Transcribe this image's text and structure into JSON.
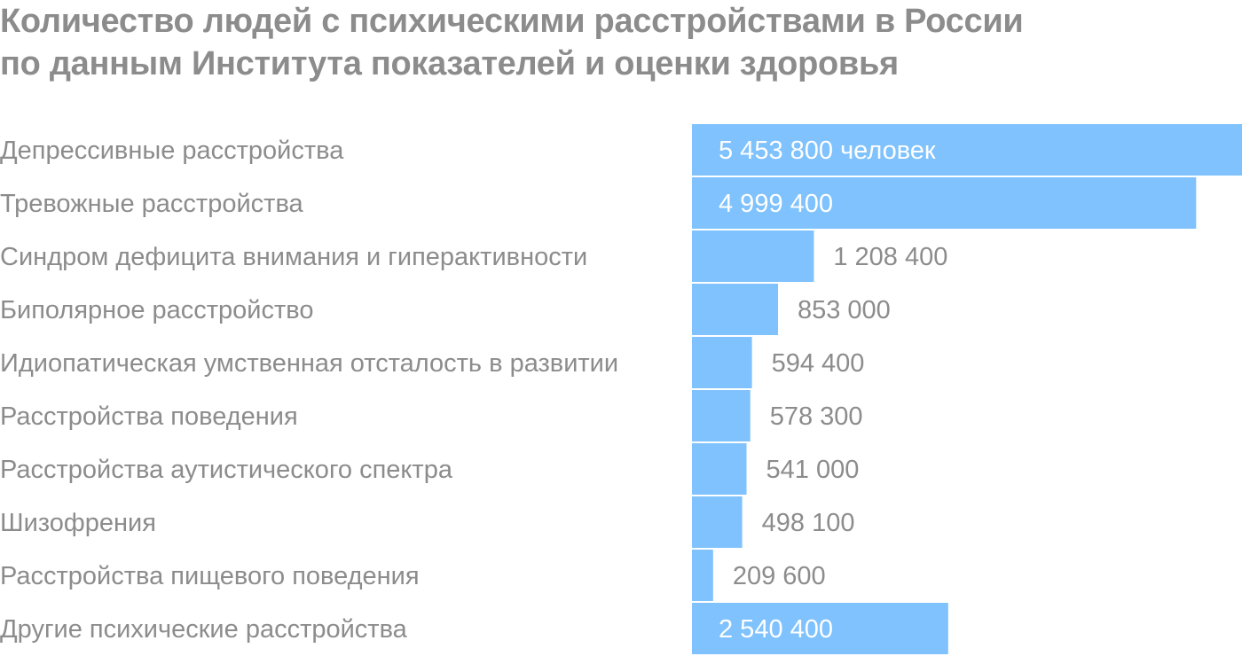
{
  "title_line1": "Количество людей с психическими расстройствами в России",
  "title_line2": "по данным Института показателей и оценки здоровья",
  "colors": {
    "bar": "#7fc2fd",
    "title": "#8c8c8c",
    "label": "#8c8c8c",
    "value_inside": "#ffffff"
  },
  "chart_data": {
    "type": "bar",
    "orientation": "horizontal",
    "title": "Количество людей с психическими расстройствами в России по данным Института показателей и оценки здоровья",
    "categories": [
      "Депрессивные расстройства",
      "Тревожные расстройства",
      "Синдром дефицита внимания и гиперактивности",
      "Биполярное расстройство",
      "Идиопатическая умственная отсталость в развитии",
      "Расстройства поведения",
      "Расстройства аутистического спектра",
      "Шизофрения",
      "Расстройства пищевого поведения",
      "Другие психические расстройства"
    ],
    "values": [
      5453800,
      4999400,
      1208400,
      853000,
      594400,
      578300,
      541000,
      498100,
      209600,
      2540400
    ],
    "value_labels": [
      "5 453 800 человек",
      "4 999 400",
      "1 208 400",
      "853 000",
      "594 400",
      "578 300",
      "541 000",
      "498 100",
      "209 600",
      "2 540 400"
    ],
    "labels_inside_bar": [
      true,
      true,
      false,
      false,
      false,
      false,
      false,
      false,
      false,
      true
    ],
    "xlim": [
      0,
      5453800
    ],
    "grid": false,
    "legend": "none"
  }
}
